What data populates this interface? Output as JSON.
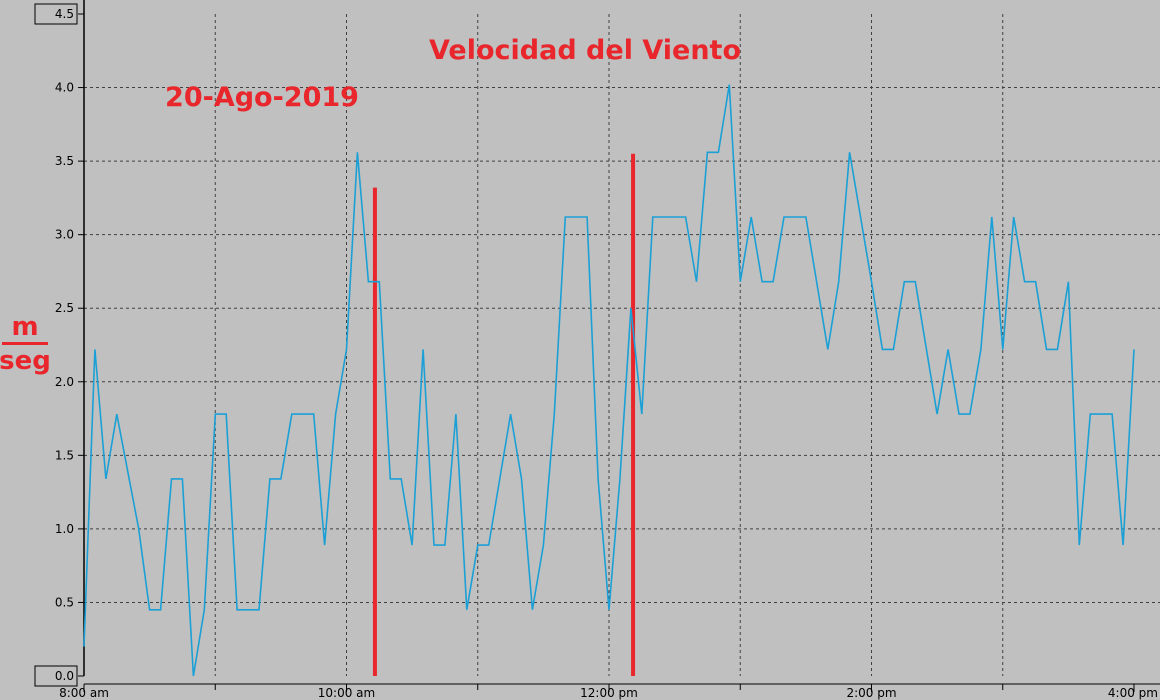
{
  "chart_data": {
    "type": "line",
    "title": "Velocidad del Viento",
    "subtitle": "20-Ago-2019",
    "ylabel_numerator": "m",
    "ylabel_denominator": "seg",
    "xlabel": "",
    "xlim": [
      0,
      480
    ],
    "ylim": [
      0,
      4.5
    ],
    "grid": true,
    "y_ticks": [
      "0.0",
      "0.5",
      "1.0",
      "1.5",
      "2.0",
      "2.5",
      "3.0",
      "3.5",
      "4.0",
      "4.5"
    ],
    "x_ticks": [
      {
        "minute": 0,
        "label": "8:00 am"
      },
      {
        "minute": 120,
        "label": "10:00 am"
      },
      {
        "minute": 240,
        "label": "12:00 pm"
      },
      {
        "minute": 360,
        "label": "2:00 pm"
      },
      {
        "minute": 480,
        "label": "4:00 pm"
      }
    ],
    "x_minor_ticks": [
      60,
      180,
      300,
      420
    ],
    "series": [
      {
        "color": "#1ba0d6",
        "points": [
          [
            0,
            0.2
          ],
          [
            5,
            2.22
          ],
          [
            10,
            1.34
          ],
          [
            15,
            1.78
          ],
          [
            25,
            1.0
          ],
          [
            30,
            0.45
          ],
          [
            35,
            0.45
          ],
          [
            40,
            1.34
          ],
          [
            45,
            1.34
          ],
          [
            50,
            0.0
          ],
          [
            55,
            0.45
          ],
          [
            60,
            1.78
          ],
          [
            65,
            1.78
          ],
          [
            70,
            0.45
          ],
          [
            80,
            0.45
          ],
          [
            85,
            1.34
          ],
          [
            90,
            1.34
          ],
          [
            95,
            1.78
          ],
          [
            105,
            1.78
          ],
          [
            110,
            0.89
          ],
          [
            115,
            1.78
          ],
          [
            120,
            2.22
          ],
          [
            125,
            3.56
          ],
          [
            130,
            2.68
          ],
          [
            135,
            2.68
          ],
          [
            140,
            1.34
          ],
          [
            145,
            1.34
          ],
          [
            150,
            0.89
          ],
          [
            155,
            2.22
          ],
          [
            160,
            0.89
          ],
          [
            165,
            0.89
          ],
          [
            170,
            1.78
          ],
          [
            175,
            0.45
          ],
          [
            180,
            0.89
          ],
          [
            185,
            0.89
          ],
          [
            195,
            1.78
          ],
          [
            200,
            1.34
          ],
          [
            205,
            0.45
          ],
          [
            210,
            0.89
          ],
          [
            215,
            1.78
          ],
          [
            220,
            3.12
          ],
          [
            230,
            3.12
          ],
          [
            235,
            1.34
          ],
          [
            240,
            0.45
          ],
          [
            245,
            1.34
          ],
          [
            250,
            2.5
          ],
          [
            255,
            1.78
          ],
          [
            260,
            3.12
          ],
          [
            275,
            3.12
          ],
          [
            280,
            2.68
          ],
          [
            285,
            3.56
          ],
          [
            290,
            3.56
          ],
          [
            295,
            4.02
          ],
          [
            300,
            2.68
          ],
          [
            305,
            3.12
          ],
          [
            310,
            2.68
          ],
          [
            315,
            2.68
          ],
          [
            320,
            3.12
          ],
          [
            330,
            3.12
          ],
          [
            340,
            2.22
          ],
          [
            345,
            2.68
          ],
          [
            350,
            3.56
          ],
          [
            360,
            2.68
          ],
          [
            365,
            2.22
          ],
          [
            370,
            2.22
          ],
          [
            375,
            2.68
          ],
          [
            380,
            2.68
          ],
          [
            390,
            1.78
          ],
          [
            395,
            2.22
          ],
          [
            400,
            1.78
          ],
          [
            405,
            1.78
          ],
          [
            410,
            2.22
          ],
          [
            415,
            3.12
          ],
          [
            420,
            2.22
          ],
          [
            425,
            3.12
          ],
          [
            430,
            2.68
          ],
          [
            435,
            2.68
          ],
          [
            440,
            2.22
          ],
          [
            445,
            2.22
          ],
          [
            450,
            2.68
          ],
          [
            455,
            0.89
          ],
          [
            460,
            1.78
          ],
          [
            470,
            1.78
          ],
          [
            475,
            0.89
          ],
          [
            480,
            2.22
          ]
        ]
      }
    ],
    "markers": [
      {
        "minute": 133,
        "y_top": 3.32,
        "color": "#e8262b"
      },
      {
        "minute": 251,
        "y_top": 3.55,
        "color": "#e8262b"
      }
    ]
  }
}
